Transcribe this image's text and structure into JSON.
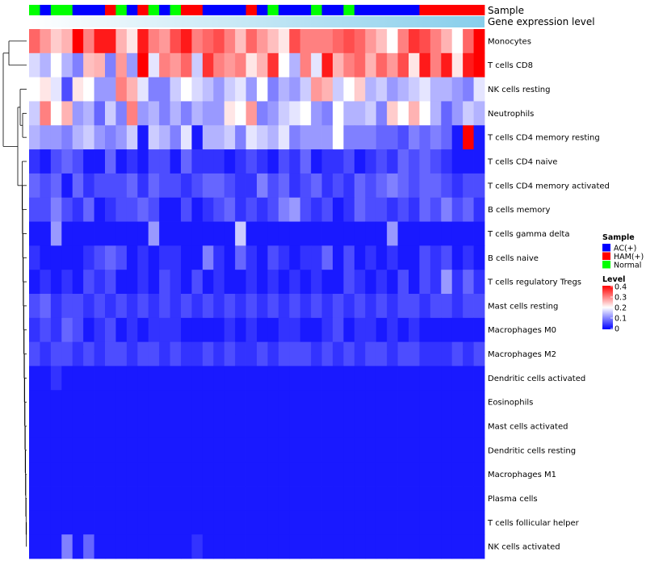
{
  "chart_data": {
    "type": "heatmap",
    "title": "",
    "annotation_tracks": [
      {
        "name": "Sample",
        "label": "Sample",
        "values": [
          "Normal",
          "AC(+)",
          "Normal",
          "Normal",
          "AC(+)",
          "AC(+)",
          "AC(+)",
          "HAM(+)",
          "Normal",
          "AC(+)",
          "HAM(+)",
          "Normal",
          "AC(+)",
          "Normal",
          "HAM(+)",
          "HAM(+)",
          "AC(+)",
          "AC(+)",
          "AC(+)",
          "AC(+)",
          "HAM(+)",
          "AC(+)",
          "Normal",
          "AC(+)",
          "AC(+)",
          "AC(+)",
          "Normal",
          "AC(+)",
          "AC(+)",
          "Normal",
          "AC(+)",
          "AC(+)",
          "AC(+)",
          "AC(+)",
          "AC(+)",
          "AC(+)",
          "HAM(+)",
          "HAM(+)",
          "HAM(+)",
          "HAM(+)",
          "HAM(+)",
          "HAM(+)"
        ]
      },
      {
        "name": "Gene expression level",
        "label": "Gene expression level",
        "values": "low-to-high gradient"
      }
    ],
    "rows": [
      "Monocytes",
      "T cells CD8",
      "NK cells resting",
      "Neutrophils",
      "T cells CD4 memory resting",
      "T cells CD4 naive",
      "T cells CD4 memory activated",
      "B cells memory",
      "T cells gamma delta",
      "B cells naive",
      "T cells regulatory  Tregs",
      "Mast cells resting",
      "Macrophages M0",
      "Macrophages M2",
      "Dendritic cells activated",
      "Eosinophils",
      "Mast cells activated",
      "Dendritic cells resting",
      "Macrophages M1",
      "Plasma cells",
      "T cells follicular helper",
      "NK cells activated"
    ],
    "values": [
      [
        0.32,
        0.28,
        0.24,
        0.26,
        0.4,
        0.3,
        0.38,
        0.38,
        0.26,
        0.22,
        0.38,
        0.3,
        0.28,
        0.34,
        0.38,
        0.3,
        0.32,
        0.34,
        0.3,
        0.25,
        0.32,
        0.28,
        0.25,
        0.22,
        0.34,
        0.3,
        0.3,
        0.3,
        0.32,
        0.34,
        0.32,
        0.28,
        0.25,
        0.2,
        0.3,
        0.36,
        0.34,
        0.3,
        0.26,
        0.2,
        0.32,
        0.4
      ],
      [
        0.17,
        0.14,
        0.2,
        0.14,
        0.1,
        0.25,
        0.26,
        0.1,
        0.28,
        0.12,
        0.4,
        0.18,
        0.3,
        0.28,
        0.32,
        0.16,
        0.36,
        0.3,
        0.28,
        0.3,
        0.22,
        0.26,
        0.36,
        0.2,
        0.14,
        0.3,
        0.18,
        0.38,
        0.26,
        0.3,
        0.32,
        0.26,
        0.32,
        0.28,
        0.34,
        0.22,
        0.38,
        0.3,
        0.38,
        0.22,
        0.38,
        0.4
      ],
      [
        0.2,
        0.22,
        0.18,
        0.06,
        0.22,
        0.2,
        0.12,
        0.12,
        0.3,
        0.26,
        0.18,
        0.1,
        0.1,
        0.16,
        0.2,
        0.17,
        0.15,
        0.12,
        0.16,
        0.18,
        0.12,
        0.2,
        0.1,
        0.14,
        0.12,
        0.16,
        0.28,
        0.26,
        0.16,
        0.2,
        0.24,
        0.14,
        0.16,
        0.12,
        0.14,
        0.16,
        0.18,
        0.14,
        0.14,
        0.12,
        0.1,
        0.18
      ],
      [
        0.16,
        0.3,
        0.2,
        0.26,
        0.12,
        0.14,
        0.08,
        0.16,
        0.1,
        0.3,
        0.12,
        0.14,
        0.1,
        0.14,
        0.1,
        0.14,
        0.12,
        0.12,
        0.22,
        0.2,
        0.28,
        0.1,
        0.12,
        0.16,
        0.18,
        0.2,
        0.12,
        0.1,
        0.2,
        0.14,
        0.14,
        0.16,
        0.1,
        0.24,
        0.2,
        0.26,
        0.2,
        0.14,
        0.08,
        0.12,
        0.16,
        0.14
      ],
      [
        0.14,
        0.12,
        0.12,
        0.1,
        0.14,
        0.16,
        0.12,
        0.1,
        0.12,
        0.16,
        0.02,
        0.16,
        0.14,
        0.1,
        0.18,
        0.02,
        0.14,
        0.14,
        0.16,
        0.1,
        0.18,
        0.16,
        0.14,
        0.18,
        0.1,
        0.12,
        0.12,
        0.12,
        0.2,
        0.1,
        0.1,
        0.1,
        0.08,
        0.08,
        0.06,
        0.1,
        0.08,
        0.1,
        0.08,
        0.02,
        0.4,
        0.02
      ],
      [
        0.04,
        0.02,
        0.06,
        0.08,
        0.06,
        0.02,
        0.02,
        0.08,
        0.02,
        0.04,
        0.02,
        0.06,
        0.06,
        0.02,
        0.08,
        0.04,
        0.04,
        0.04,
        0.02,
        0.04,
        0.06,
        0.04,
        0.02,
        0.06,
        0.04,
        0.08,
        0.02,
        0.04,
        0.04,
        0.06,
        0.02,
        0.04,
        0.06,
        0.04,
        0.08,
        0.06,
        0.08,
        0.06,
        0.04,
        0.02,
        0.02,
        0.02
      ],
      [
        0.08,
        0.06,
        0.08,
        0.02,
        0.08,
        0.04,
        0.06,
        0.06,
        0.06,
        0.08,
        0.04,
        0.08,
        0.06,
        0.06,
        0.04,
        0.06,
        0.08,
        0.08,
        0.06,
        0.04,
        0.04,
        0.1,
        0.06,
        0.08,
        0.04,
        0.06,
        0.08,
        0.04,
        0.06,
        0.04,
        0.08,
        0.06,
        0.08,
        0.1,
        0.08,
        0.06,
        0.08,
        0.08,
        0.06,
        0.04,
        0.06,
        0.06
      ],
      [
        0.06,
        0.06,
        0.1,
        0.06,
        0.04,
        0.08,
        0.02,
        0.04,
        0.06,
        0.06,
        0.08,
        0.06,
        0.02,
        0.02,
        0.06,
        0.02,
        0.04,
        0.06,
        0.08,
        0.04,
        0.06,
        0.04,
        0.06,
        0.1,
        0.12,
        0.06,
        0.04,
        0.06,
        0.02,
        0.04,
        0.08,
        0.06,
        0.06,
        0.04,
        0.06,
        0.04,
        0.08,
        0.06,
        0.1,
        0.06,
        0.08,
        0.04
      ],
      [
        0.02,
        0.02,
        0.12,
        0.02,
        0.02,
        0.02,
        0.02,
        0.02,
        0.02,
        0.02,
        0.02,
        0.12,
        0.02,
        0.02,
        0.02,
        0.02,
        0.02,
        0.02,
        0.02,
        0.16,
        0.02,
        0.02,
        0.02,
        0.02,
        0.02,
        0.02,
        0.02,
        0.02,
        0.02,
        0.02,
        0.02,
        0.02,
        0.02,
        0.12,
        0.02,
        0.02,
        0.02,
        0.02,
        0.02,
        0.02,
        0.02,
        0.02
      ],
      [
        0.04,
        0.02,
        0.02,
        0.02,
        0.02,
        0.04,
        0.06,
        0.08,
        0.06,
        0.02,
        0.04,
        0.02,
        0.04,
        0.04,
        0.02,
        0.02,
        0.1,
        0.04,
        0.02,
        0.08,
        0.04,
        0.02,
        0.06,
        0.04,
        0.02,
        0.04,
        0.04,
        0.08,
        0.02,
        0.06,
        0.02,
        0.04,
        0.02,
        0.04,
        0.02,
        0.02,
        0.06,
        0.04,
        0.06,
        0.02,
        0.04,
        0.02
      ],
      [
        0.02,
        0.04,
        0.02,
        0.04,
        0.02,
        0.06,
        0.04,
        0.06,
        0.02,
        0.02,
        0.04,
        0.02,
        0.06,
        0.04,
        0.02,
        0.06,
        0.02,
        0.04,
        0.02,
        0.02,
        0.04,
        0.02,
        0.04,
        0.02,
        0.04,
        0.02,
        0.04,
        0.02,
        0.02,
        0.06,
        0.04,
        0.02,
        0.04,
        0.02,
        0.06,
        0.02,
        0.06,
        0.04,
        0.12,
        0.04,
        0.08,
        0.04
      ],
      [
        0.06,
        0.08,
        0.04,
        0.06,
        0.06,
        0.04,
        0.06,
        0.04,
        0.06,
        0.04,
        0.06,
        0.04,
        0.06,
        0.04,
        0.06,
        0.04,
        0.06,
        0.04,
        0.06,
        0.04,
        0.06,
        0.04,
        0.06,
        0.04,
        0.06,
        0.04,
        0.06,
        0.04,
        0.06,
        0.04,
        0.06,
        0.04,
        0.06,
        0.04,
        0.06,
        0.06,
        0.04,
        0.06,
        0.06,
        0.04,
        0.06,
        0.06
      ],
      [
        0.04,
        0.06,
        0.04,
        0.08,
        0.06,
        0.02,
        0.04,
        0.06,
        0.02,
        0.04,
        0.02,
        0.04,
        0.04,
        0.04,
        0.02,
        0.02,
        0.02,
        0.02,
        0.04,
        0.02,
        0.04,
        0.02,
        0.02,
        0.04,
        0.04,
        0.02,
        0.02,
        0.04,
        0.06,
        0.02,
        0.04,
        0.04,
        0.02,
        0.04,
        0.02,
        0.04,
        0.02,
        0.02,
        0.02,
        0.02,
        0.02,
        0.02
      ],
      [
        0.06,
        0.04,
        0.06,
        0.06,
        0.04,
        0.06,
        0.04,
        0.06,
        0.06,
        0.04,
        0.06,
        0.06,
        0.04,
        0.06,
        0.04,
        0.04,
        0.06,
        0.04,
        0.06,
        0.04,
        0.04,
        0.06,
        0.04,
        0.06,
        0.06,
        0.06,
        0.04,
        0.06,
        0.04,
        0.06,
        0.04,
        0.06,
        0.06,
        0.04,
        0.06,
        0.06,
        0.04,
        0.04,
        0.04,
        0.06,
        0.04,
        0.06
      ],
      [
        0.02,
        0.02,
        0.04,
        0.02,
        0.02,
        0.02,
        0.02,
        0.02,
        0.02,
        0.02,
        0.02,
        0.02,
        0.02,
        0.02,
        0.02,
        0.02,
        0.02,
        0.02,
        0.02,
        0.02,
        0.02,
        0.02,
        0.02,
        0.02,
        0.02,
        0.02,
        0.02,
        0.02,
        0.02,
        0.02,
        0.02,
        0.02,
        0.02,
        0.02,
        0.02,
        0.02,
        0.02,
        0.02,
        0.02,
        0.02,
        0.02,
        0.02
      ],
      [
        0.02,
        0.02,
        0.02,
        0.02,
        0.02,
        0.02,
        0.02,
        0.02,
        0.02,
        0.02,
        0.02,
        0.02,
        0.02,
        0.02,
        0.02,
        0.02,
        0.02,
        0.02,
        0.02,
        0.02,
        0.02,
        0.02,
        0.02,
        0.02,
        0.02,
        0.02,
        0.02,
        0.02,
        0.02,
        0.02,
        0.02,
        0.02,
        0.02,
        0.02,
        0.02,
        0.02,
        0.02,
        0.02,
        0.02,
        0.02,
        0.02,
        0.02
      ],
      [
        0.02,
        0.02,
        0.02,
        0.02,
        0.02,
        0.02,
        0.02,
        0.02,
        0.02,
        0.02,
        0.02,
        0.02,
        0.02,
        0.02,
        0.02,
        0.02,
        0.02,
        0.02,
        0.02,
        0.02,
        0.02,
        0.02,
        0.02,
        0.02,
        0.02,
        0.02,
        0.02,
        0.02,
        0.02,
        0.02,
        0.02,
        0.02,
        0.02,
        0.02,
        0.02,
        0.02,
        0.02,
        0.02,
        0.02,
        0.02,
        0.02,
        0.02
      ],
      [
        0.02,
        0.02,
        0.02,
        0.02,
        0.02,
        0.02,
        0.02,
        0.02,
        0.02,
        0.02,
        0.02,
        0.02,
        0.02,
        0.02,
        0.02,
        0.02,
        0.02,
        0.02,
        0.02,
        0.02,
        0.02,
        0.02,
        0.02,
        0.02,
        0.02,
        0.02,
        0.02,
        0.02,
        0.02,
        0.02,
        0.02,
        0.02,
        0.02,
        0.02,
        0.02,
        0.02,
        0.02,
        0.02,
        0.02,
        0.02,
        0.02,
        0.02
      ],
      [
        0.02,
        0.02,
        0.02,
        0.02,
        0.02,
        0.02,
        0.02,
        0.02,
        0.02,
        0.02,
        0.02,
        0.02,
        0.02,
        0.02,
        0.02,
        0.02,
        0.02,
        0.02,
        0.02,
        0.02,
        0.02,
        0.02,
        0.02,
        0.02,
        0.02,
        0.02,
        0.02,
        0.02,
        0.02,
        0.02,
        0.02,
        0.02,
        0.02,
        0.02,
        0.02,
        0.02,
        0.02,
        0.02,
        0.02,
        0.02,
        0.02,
        0.02
      ],
      [
        0.02,
        0.02,
        0.02,
        0.02,
        0.02,
        0.02,
        0.02,
        0.02,
        0.02,
        0.02,
        0.02,
        0.02,
        0.02,
        0.02,
        0.02,
        0.02,
        0.02,
        0.02,
        0.02,
        0.02,
        0.02,
        0.02,
        0.02,
        0.02,
        0.02,
        0.02,
        0.02,
        0.02,
        0.02,
        0.02,
        0.02,
        0.02,
        0.02,
        0.02,
        0.02,
        0.02,
        0.02,
        0.02,
        0.02,
        0.02,
        0.02,
        0.02
      ],
      [
        0.02,
        0.02,
        0.02,
        0.02,
        0.02,
        0.02,
        0.02,
        0.02,
        0.02,
        0.02,
        0.02,
        0.02,
        0.02,
        0.02,
        0.02,
        0.02,
        0.02,
        0.02,
        0.02,
        0.02,
        0.02,
        0.02,
        0.02,
        0.02,
        0.02,
        0.02,
        0.02,
        0.02,
        0.02,
        0.02,
        0.02,
        0.02,
        0.02,
        0.02,
        0.02,
        0.02,
        0.02,
        0.02,
        0.02,
        0.02,
        0.02,
        0.02
      ],
      [
        0.02,
        0.02,
        0.02,
        0.1,
        0.02,
        0.08,
        0.02,
        0.02,
        0.02,
        0.02,
        0.02,
        0.02,
        0.02,
        0.02,
        0.02,
        0.04,
        0.02,
        0.02,
        0.02,
        0.02,
        0.02,
        0.02,
        0.02,
        0.02,
        0.02,
        0.02,
        0.02,
        0.02,
        0.02,
        0.02,
        0.02,
        0.02,
        0.02,
        0.02,
        0.02,
        0.02,
        0.02,
        0.02,
        0.02,
        0.02,
        0.02,
        0.02
      ]
    ],
    "color_scale": {
      "min": 0,
      "max": 0.4,
      "low_color": "#0000ff",
      "mid_color": "#ffffff",
      "high_color": "#ff0000",
      "ticks": [
        "0.4",
        "0.3",
        "0.2",
        "0.1",
        "0"
      ]
    },
    "legends": [
      {
        "title": "Sample",
        "items": [
          {
            "label": "AC(+)",
            "color": "#0000ff"
          },
          {
            "label": "HAM(+)",
            "color": "#ff0000"
          },
          {
            "label": "Normal",
            "color": "#00ff00"
          }
        ]
      },
      {
        "title": "Level",
        "type": "gradient"
      }
    ],
    "expression_gradient": {
      "from": "#ffffff",
      "to": "#87ceeb"
    },
    "dendrogram": "row clustering (left)"
  }
}
